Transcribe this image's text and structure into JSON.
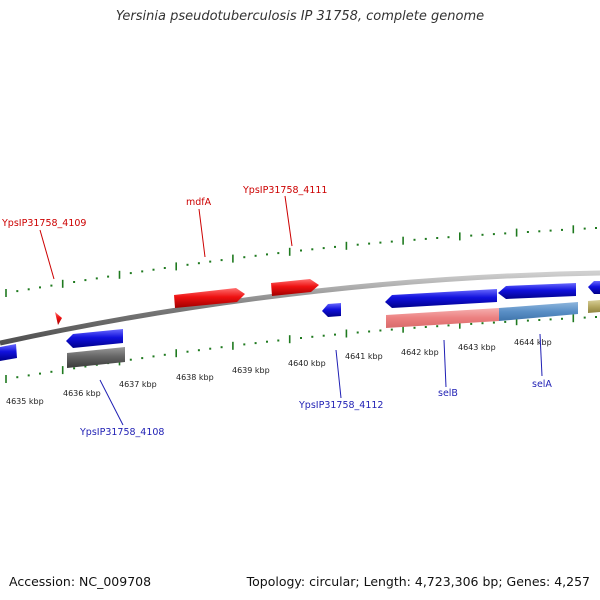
{
  "title": "Yersinia pseudotuberculosis IP 31758, complete genome",
  "footer": {
    "accession": "Accession: NC_009708",
    "stats": "Topology: circular; Length: 4,723,306 bp; Genes: 4,257"
  },
  "colors": {
    "backbone": "#7a7a7a",
    "ticks": "#1f7a1f",
    "forward_label": "#cc0000",
    "reverse_label": "#1f1fb4",
    "forward_gene": "#ee1111",
    "reverse_gene": "#1111dd"
  },
  "scale_labels": [
    "4635 kbp",
    "4636 kbp",
    "4637 kbp",
    "4638 kbp",
    "4639 kbp",
    "4640 kbp",
    "4641 kbp",
    "4642 kbp",
    "4643 kbp",
    "4644 kbp"
  ],
  "forward_labels": {
    "ypsip_4109": "YpsIP31758_4109",
    "mdfa": "mdfA",
    "ypsip_4111": "YpsIP31758_4111"
  },
  "reverse_labels": {
    "ypsip_4108": "YpsIP31758_4108",
    "ypsip_4112": "YpsIP31758_4112",
    "selb": "selB",
    "sela": "selA"
  }
}
